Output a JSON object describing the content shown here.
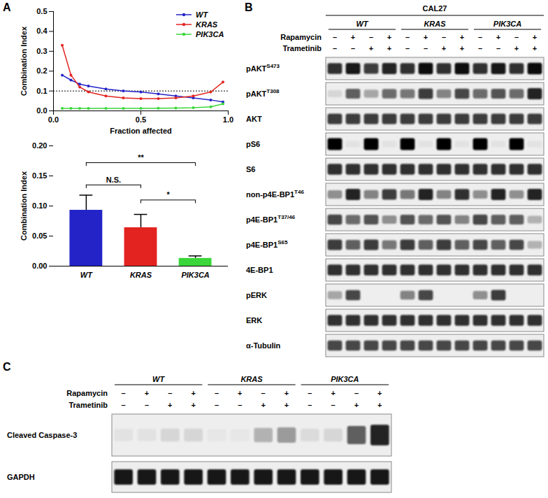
{
  "chart_data": [
    {
      "type": "line",
      "panel_label": "A",
      "xlabel": "Fraction affected",
      "ylabel": "Combination Index",
      "xlim": [
        0,
        1
      ],
      "xticks": [
        {
          "value": 0,
          "label": "0.0"
        },
        0.5,
        {
          "value": 1,
          "label": "1.0"
        }
      ],
      "ylim": [
        0,
        0.5
      ],
      "yticks": [
        {
          "value": 0,
          "label": "0.0"
        },
        0.1,
        0.2,
        0.3,
        0.4,
        0.5
      ],
      "legend": "upper right",
      "marker": "circle",
      "reference_lines": [
        {
          "y": 0.1,
          "line_style": "dotted"
        }
      ],
      "x": [
        0.05,
        0.1,
        0.15,
        0.2,
        0.3,
        0.4,
        0.5,
        0.6,
        0.7,
        0.8,
        0.9,
        0.97
      ],
      "series": [
        {
          "name": "WT",
          "color": "#2323c8",
          "values": [
            0.18,
            0.155,
            0.135,
            0.125,
            0.11,
            0.1,
            0.095,
            0.085,
            0.075,
            0.065,
            0.055,
            0.045
          ]
        },
        {
          "name": "KRAS",
          "color": "#e3231f",
          "values": [
            0.33,
            0.18,
            0.12,
            0.095,
            0.075,
            0.065,
            0.062,
            0.062,
            0.065,
            0.075,
            0.095,
            0.145
          ]
        },
        {
          "name": "PIK3CA",
          "color": "#3ad63a",
          "values": [
            0.012,
            0.012,
            0.012,
            0.012,
            0.012,
            0.012,
            0.012,
            0.013,
            0.014,
            0.016,
            0.02,
            0.035
          ]
        }
      ]
    },
    {
      "type": "bar",
      "ylabel": "Combination Index",
      "ylim": [
        0,
        0.2
      ],
      "yticks": [
        {
          "value": 0,
          "label": "0.00"
        },
        0.05,
        {
          "value": 0.1,
          "label": "0.10"
        },
        0.15,
        {
          "value": 0.2,
          "label": "0.20"
        }
      ],
      "categories": [
        "WT",
        "KRAS",
        "PIK3CA"
      ],
      "values": [
        0.093,
        0.064,
        0.013
      ],
      "errors": [
        0.025,
        0.022,
        0.004
      ],
      "colors": [
        "#2323c8",
        "#e3231f",
        "#3ad63a"
      ],
      "significance": [
        {
          "from": "WT",
          "to": "KRAS",
          "label": "N.S.",
          "y": 0.135
        },
        {
          "from": "WT",
          "to": "PIK3CA",
          "label": "**",
          "y": 0.172
        },
        {
          "from": "KRAS",
          "to": "PIK3CA",
          "label": "*",
          "y": 0.11
        }
      ]
    }
  ],
  "blots": [
    {
      "panel_label": "B",
      "title": "CAL27",
      "groups": [
        "WT",
        "KRAS",
        "PIK3CA"
      ],
      "treatments": [
        {
          "name": "Rapamycin",
          "signs": [
            "–",
            "+",
            "–",
            "+",
            "–",
            "+",
            "–",
            "+",
            "–",
            "+",
            "–",
            "+"
          ]
        },
        {
          "name": "Trametinib",
          "signs": [
            "–",
            "–",
            "+",
            "+",
            "–",
            "–",
            "+",
            "+",
            "–",
            "–",
            "+",
            "+"
          ]
        }
      ],
      "rows": [
        {
          "label": "pAKT",
          "sup": "S473",
          "intensity": [
            0.8,
            0.9,
            0.75,
            0.85,
            0.8,
            0.95,
            0.8,
            0.95,
            0.8,
            0.9,
            0.8,
            0.95
          ]
        },
        {
          "label": "pAKT",
          "sup": "T308",
          "intensity": [
            0.1,
            0.6,
            0.3,
            0.55,
            0.5,
            0.75,
            0.45,
            0.7,
            0.55,
            0.65,
            0.55,
            0.85
          ]
        },
        {
          "label": "AKT",
          "intensity": [
            0.75,
            0.75,
            0.75,
            0.75,
            0.75,
            0.75,
            0.75,
            0.75,
            0.75,
            0.75,
            0.75,
            0.75
          ]
        },
        {
          "label": "pS6",
          "intensity": [
            1,
            0.05,
            1,
            0.05,
            1,
            0.05,
            1,
            0.05,
            1,
            0.05,
            1,
            0.05
          ]
        },
        {
          "label": "S6",
          "intensity": [
            0.8,
            0.8,
            0.8,
            0.8,
            0.8,
            0.8,
            0.8,
            0.8,
            0.8,
            0.8,
            0.8,
            0.8
          ]
        },
        {
          "label": "non-p4E-BP1",
          "sup": "T46",
          "intensity": [
            0.4,
            0.85,
            0.45,
            0.75,
            0.5,
            0.85,
            0.45,
            0.8,
            0.4,
            0.85,
            0.4,
            0.85
          ]
        },
        {
          "label": "p4E-BP1",
          "sup": "T37/46",
          "intensity": [
            0.7,
            0.55,
            0.65,
            0.4,
            0.65,
            0.55,
            0.65,
            0.45,
            0.7,
            0.6,
            0.6,
            0.25
          ]
        },
        {
          "label": "p4E-BP1",
          "sup": "S65",
          "intensity": [
            0.75,
            0.6,
            0.75,
            0.5,
            0.75,
            0.6,
            0.75,
            0.6,
            0.7,
            0.6,
            0.7,
            0.25
          ]
        },
        {
          "label": "4E-BP1",
          "intensity": [
            0.8,
            0.8,
            0.8,
            0.8,
            0.8,
            0.8,
            0.8,
            0.8,
            0.8,
            0.8,
            0.8,
            0.8
          ]
        },
        {
          "label": "pERK",
          "intensity": [
            0.3,
            0.7,
            0,
            0,
            0.45,
            0.7,
            0,
            0,
            0.4,
            0.75,
            0,
            0
          ]
        },
        {
          "label": "ERK",
          "intensity": [
            0.8,
            0.8,
            0.8,
            0.8,
            0.8,
            0.8,
            0.8,
            0.8,
            0.8,
            0.8,
            0.8,
            0.8
          ]
        },
        {
          "label": "α-Tubulin",
          "intensity": [
            0.7,
            0.7,
            0.7,
            0.7,
            0.7,
            0.7,
            0.7,
            0.7,
            0.7,
            0.7,
            0.7,
            0.7
          ]
        }
      ]
    },
    {
      "panel_label": "C",
      "groups": [
        "WT",
        "KRAS",
        "PIK3CA"
      ],
      "treatments": [
        {
          "name": "Rapamycin",
          "signs": [
            "–",
            "+",
            "–",
            "+",
            "–",
            "+",
            "–",
            "+",
            "–",
            "+",
            "–",
            "+"
          ]
        },
        {
          "name": "Trametinib",
          "signs": [
            "–",
            "–",
            "+",
            "+",
            "–",
            "–",
            "+",
            "+",
            "–",
            "–",
            "+",
            "+"
          ]
        }
      ],
      "rows": [
        {
          "label": "Cleaved Caspase-3",
          "intensity": [
            0.05,
            0.05,
            0.1,
            0.1,
            0.03,
            0.03,
            0.25,
            0.35,
            0.08,
            0.1,
            0.6,
            0.85
          ]
        },
        {
          "label": "GAPDH",
          "intensity": [
            0.9,
            0.9,
            0.9,
            0.9,
            0.9,
            0.9,
            0.9,
            0.9,
            0.9,
            0.9,
            0.9,
            0.9
          ]
        }
      ]
    }
  ]
}
